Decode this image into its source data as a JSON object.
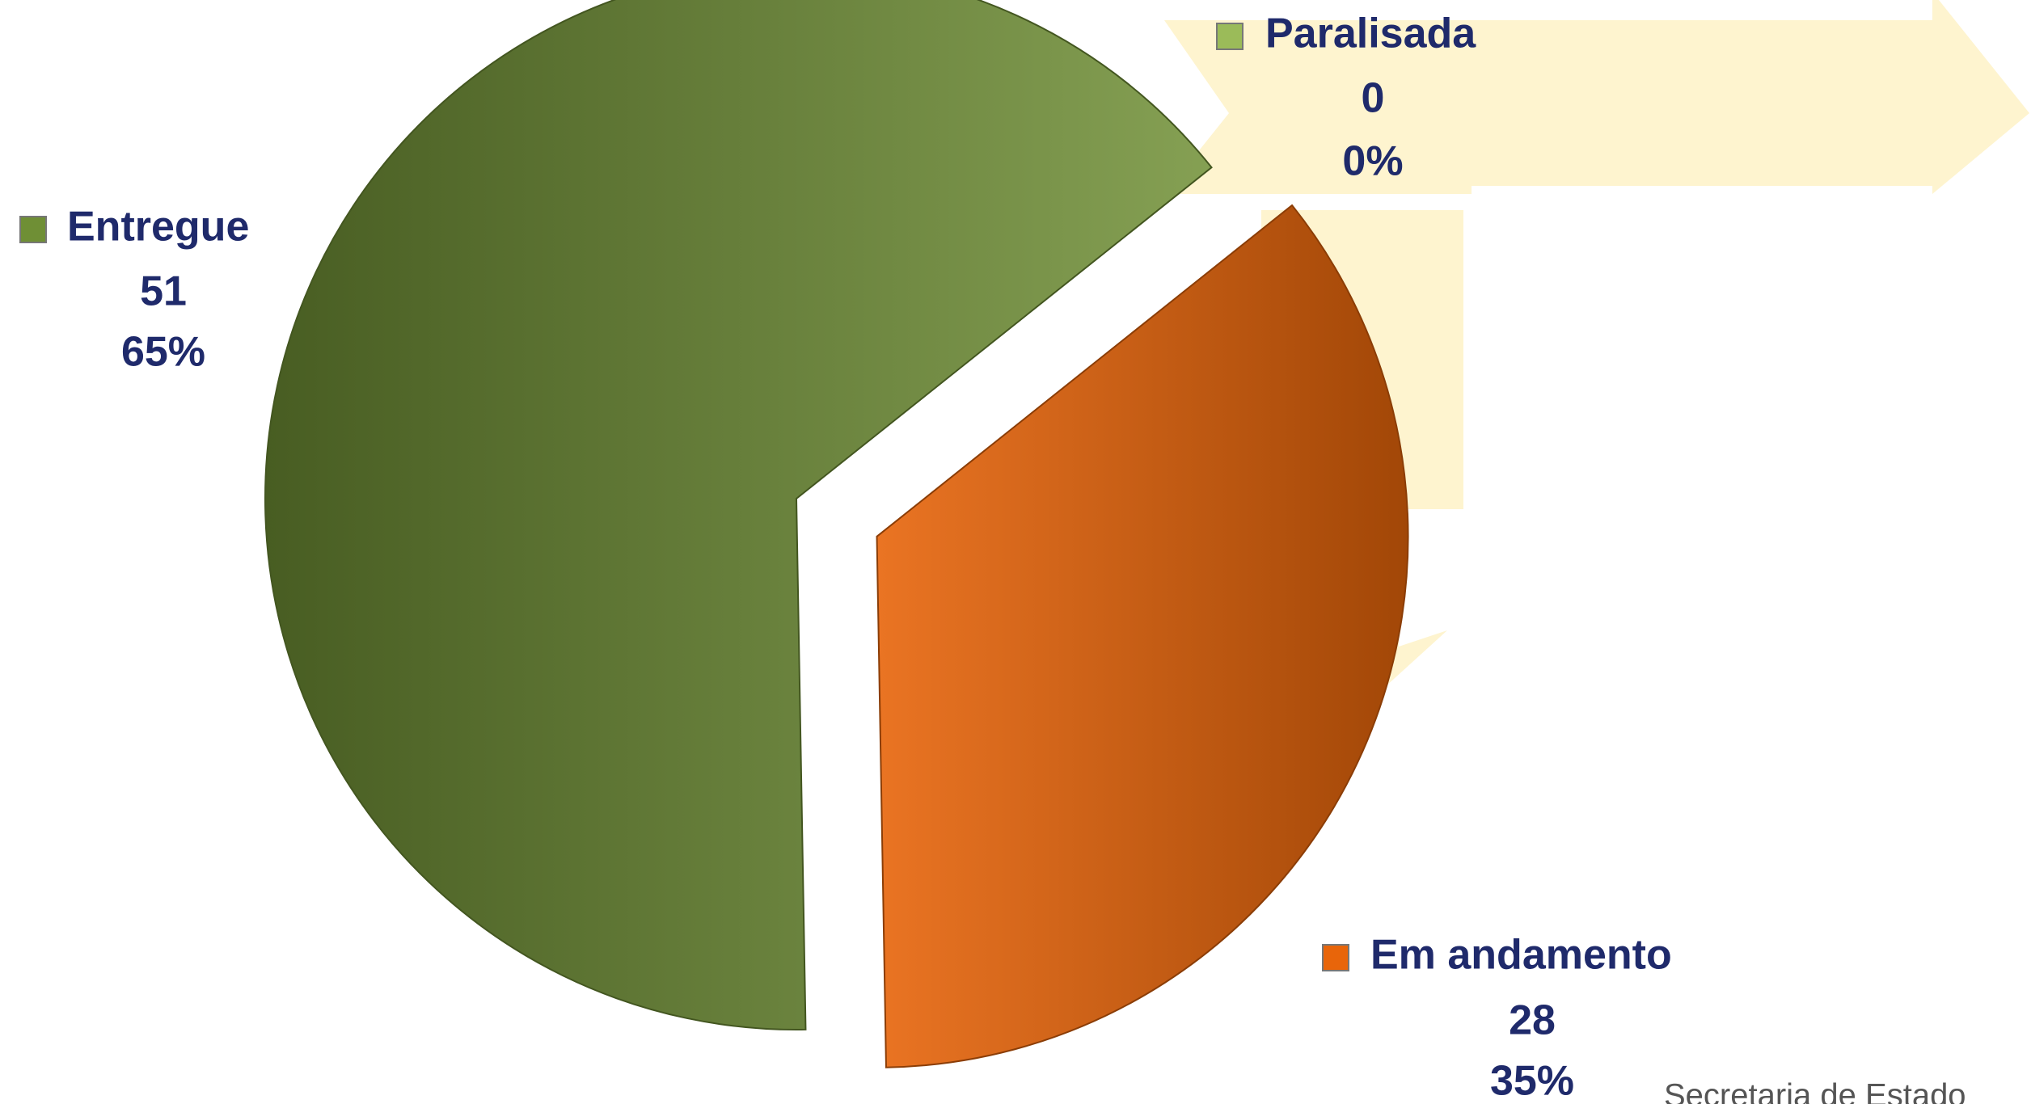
{
  "chart_data": {
    "type": "pie",
    "categories": [
      "Entregue",
      "Em andamento",
      "Paralisada"
    ],
    "values": [
      51,
      28,
      0
    ],
    "percent_labels": [
      "65%",
      "35%",
      "0%"
    ],
    "colors": [
      "#6f8f35",
      "#e8650a",
      "#9bbb59"
    ],
    "exploded": [
      false,
      true,
      false
    ],
    "footer": "Secretaria de Estado"
  }
}
